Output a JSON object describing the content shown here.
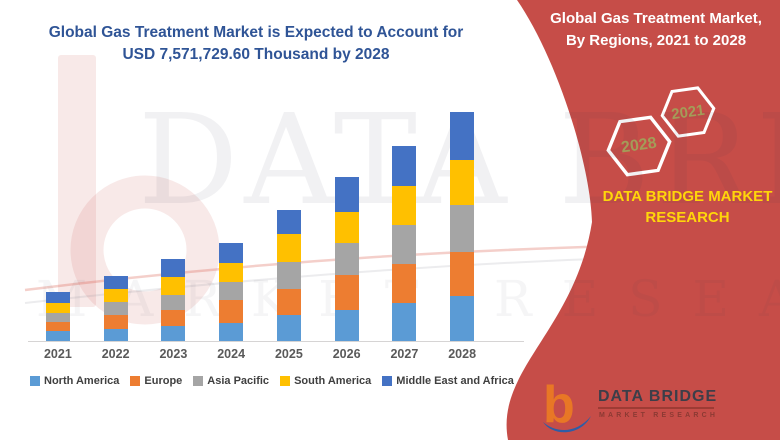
{
  "main_title": {
    "line1": "Global Gas Treatment Market is Expected to Account for",
    "line2": "USD 7,571,729.60 Thousand by 2028"
  },
  "right_panel": {
    "title_line1": "Global Gas Treatment Market,",
    "title_line2": "By Regions, 2021 to 2028",
    "badge_back": "2028",
    "badge_front": "2021",
    "brand_line1": "DATA BRIDGE MARKET",
    "brand_line2": "RESEARCH",
    "panel_color": "#C64D48",
    "badge_text_color": "#A49C58",
    "brand_text_color": "#FFD60A"
  },
  "footer_logo": {
    "name": "DATA BRIDGE",
    "subtitle": "MARKET RESEARCH",
    "mark_colors": {
      "b": "#E87725",
      "swoosh": "#2E5DA6"
    }
  },
  "watermark": {
    "row1": "DATA BRIDGE",
    "row2": "MARKET RESEARCH"
  },
  "chart_data": {
    "type": "bar",
    "stacked": true,
    "title": "Global Gas Treatment Market is Expected to Account for USD 7,571,729.60 Thousand by 2028",
    "units": "USD Thousand (values estimated from bar heights; 2028 total given as 7,571,729.60)",
    "categories": [
      "2021",
      "2022",
      "2023",
      "2024",
      "2025",
      "2026",
      "2027",
      "2028"
    ],
    "series": [
      {
        "name": "North America",
        "color": "#5B9BD5",
        "values": [
          330000,
          396000,
          495000,
          594000,
          858000,
          1023000,
          1254000,
          1485000
        ]
      },
      {
        "name": "Europe",
        "color": "#ED7D31",
        "values": [
          297000,
          462000,
          528000,
          759000,
          858000,
          1155000,
          1287000,
          1452000
        ]
      },
      {
        "name": "Asia Pacific",
        "color": "#A5A5A5",
        "values": [
          297000,
          429000,
          495000,
          594000,
          891000,
          1056000,
          1287000,
          1551000
        ]
      },
      {
        "name": "South America",
        "color": "#FFC000",
        "values": [
          330000,
          429000,
          594000,
          627000,
          924000,
          1023000,
          1287000,
          1485000
        ]
      },
      {
        "name": "Middle East and Africa",
        "color": "#4472C4",
        "values": [
          363000,
          429000,
          594000,
          660000,
          792000,
          1155000,
          1320000,
          1584000
        ]
      }
    ],
    "xlabel": "",
    "ylabel": "",
    "y_axis_shown": false,
    "gridlines": false,
    "legend_position": "bottom"
  }
}
